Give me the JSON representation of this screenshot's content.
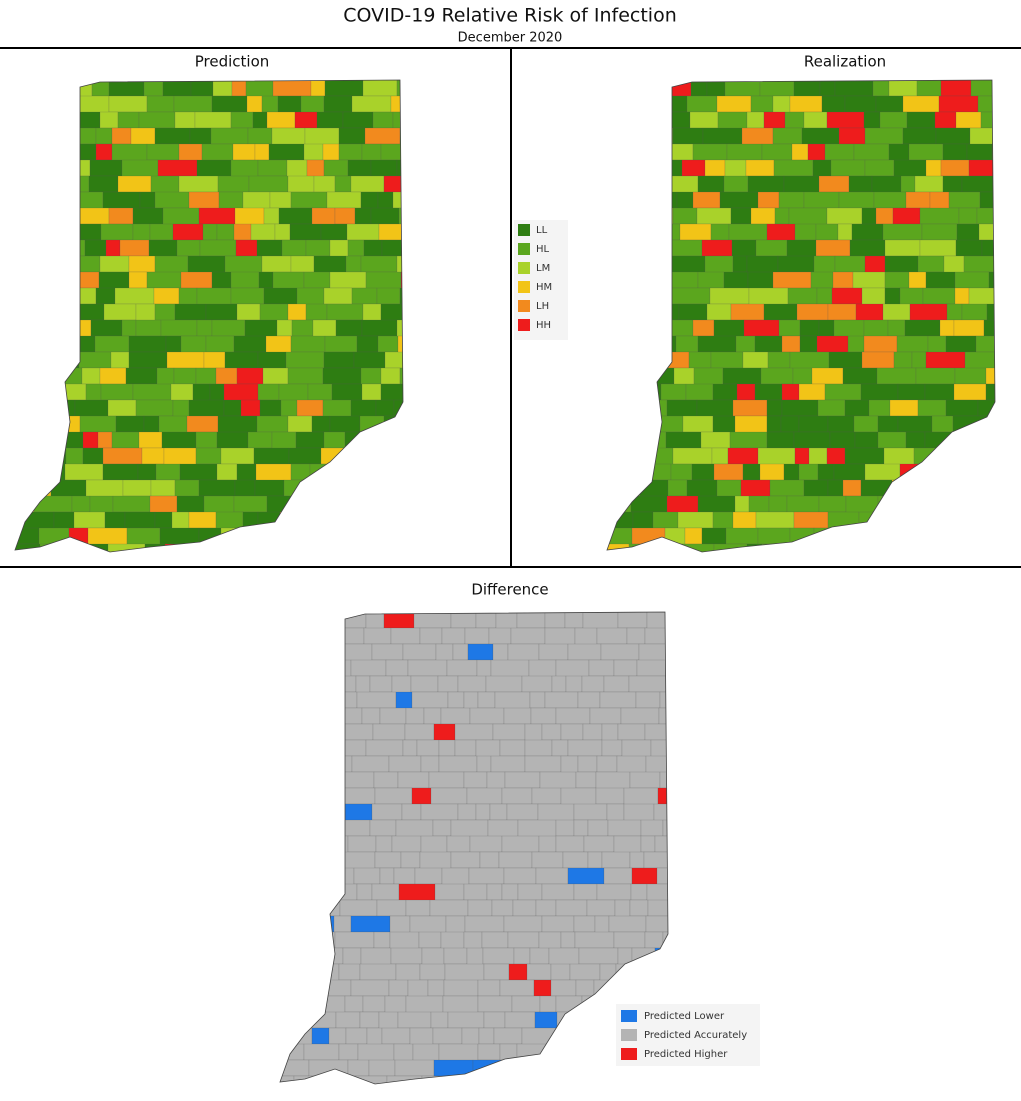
{
  "title": "COVID-19 Relative Risk of Infection",
  "subtitle": "December 2020",
  "panels": [
    {
      "title": "Prediction"
    },
    {
      "title": "Realization"
    },
    {
      "title": "Difference"
    }
  ],
  "risk_legend": [
    {
      "label": "LL",
      "color": "#2e7d12"
    },
    {
      "label": "HL",
      "color": "#5ba61e"
    },
    {
      "label": "LM",
      "color": "#a9d22a"
    },
    {
      "label": "HM",
      "color": "#f2c417"
    },
    {
      "label": "LH",
      "color": "#f28a1e"
    },
    {
      "label": "HH",
      "color": "#ee1c1c"
    }
  ],
  "difference_legend": [
    {
      "label": "Predicted Lower",
      "color": "#1e78e6"
    },
    {
      "label": "Predicted Accurately",
      "color": "#b4b4b4"
    },
    {
      "label": "Predicted Higher",
      "color": "#ee1c1c"
    }
  ]
}
